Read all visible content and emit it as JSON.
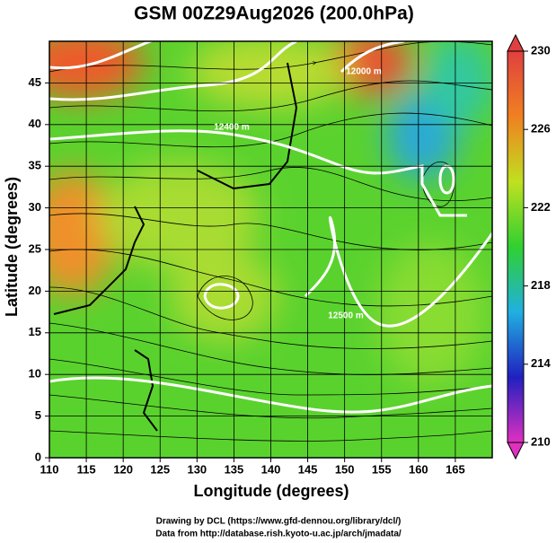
{
  "chart_data": {
    "type": "map",
    "title": "GSM 00Z29Aug2026 (200.0hPa)",
    "x_label": "Longitude (degrees)",
    "y_label": "Latitude  (degrees)",
    "xlim": [
      110,
      170
    ],
    "ylim": [
      0,
      50
    ],
    "xticks": [
      110,
      115,
      120,
      125,
      130,
      135,
      140,
      145,
      150,
      155,
      160,
      165
    ],
    "yticks": [
      0,
      5,
      10,
      15,
      20,
      25,
      30,
      35,
      40,
      45
    ],
    "grid": true,
    "colorbar": {
      "lim": [
        210,
        230
      ],
      "ticks": [
        210,
        214,
        218,
        222,
        226,
        230
      ],
      "colors": [
        "#e030c0",
        "#2020c0",
        "#20b0e0",
        "#30d030",
        "#c0e020",
        "#f08020",
        "#e04040"
      ]
    },
    "contour_labels": [
      "12000 m",
      "12400 m",
      "12500 m"
    ],
    "credits": [
      "Drawing by DCL (https://www.gfd-dennou.org/library/dcl/)",
      "Data from http://database.rish.kyoto-u.ac.jp/arch/jmadata/"
    ]
  }
}
